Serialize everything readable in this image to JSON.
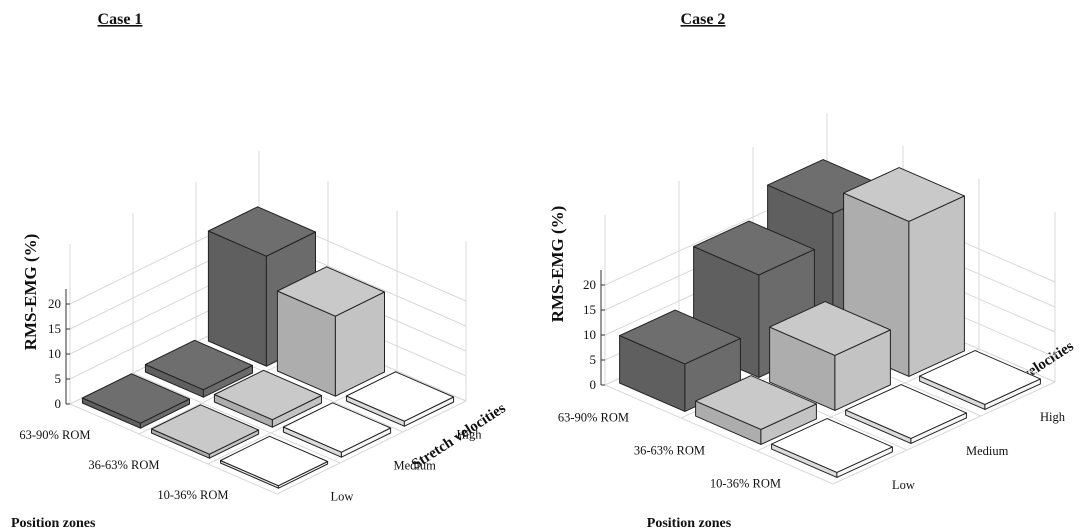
{
  "chart_data": [
    {
      "type": "bar3d",
      "title": "Case 1",
      "ylabel": "RMS-EMG (%)",
      "xlabel": "Position zones",
      "zlabel": "Stretch velocities",
      "position_zones": [
        "63-90% ROM",
        "36-63% ROM",
        "10-36% ROM"
      ],
      "stretch_velocities": [
        "Low",
        "Medium",
        "High"
      ],
      "yticks": [
        0,
        5,
        10,
        15,
        20
      ],
      "ylim": [
        0,
        30
      ],
      "colors": [
        "#6e6e6e",
        "#c9c9c9",
        "#ffffff"
      ],
      "values": [
        [
          1,
          1.5,
          22
        ],
        [
          0.8,
          1.5,
          16
        ],
        [
          0.5,
          1,
          1
        ]
      ]
    },
    {
      "type": "bar3d",
      "title": "Case 2",
      "ylabel": "RMS-EMG (%)",
      "xlabel": "Position zones",
      "zlabel": "Stretch velocities",
      "position_zones": [
        "63-90% ROM",
        "36-63% ROM",
        "10-36% ROM"
      ],
      "stretch_velocities": [
        "Low",
        "Medium",
        "High"
      ],
      "yticks": [
        0,
        5,
        10,
        15,
        20
      ],
      "ylim": [
        0,
        30
      ],
      "colors": [
        "#6e6e6e",
        "#c9c9c9",
        "#ffffff"
      ],
      "values": [
        [
          9.5,
          20.5,
          26
        ],
        [
          3,
          11,
          31
        ],
        [
          1,
          1,
          1
        ]
      ]
    }
  ]
}
